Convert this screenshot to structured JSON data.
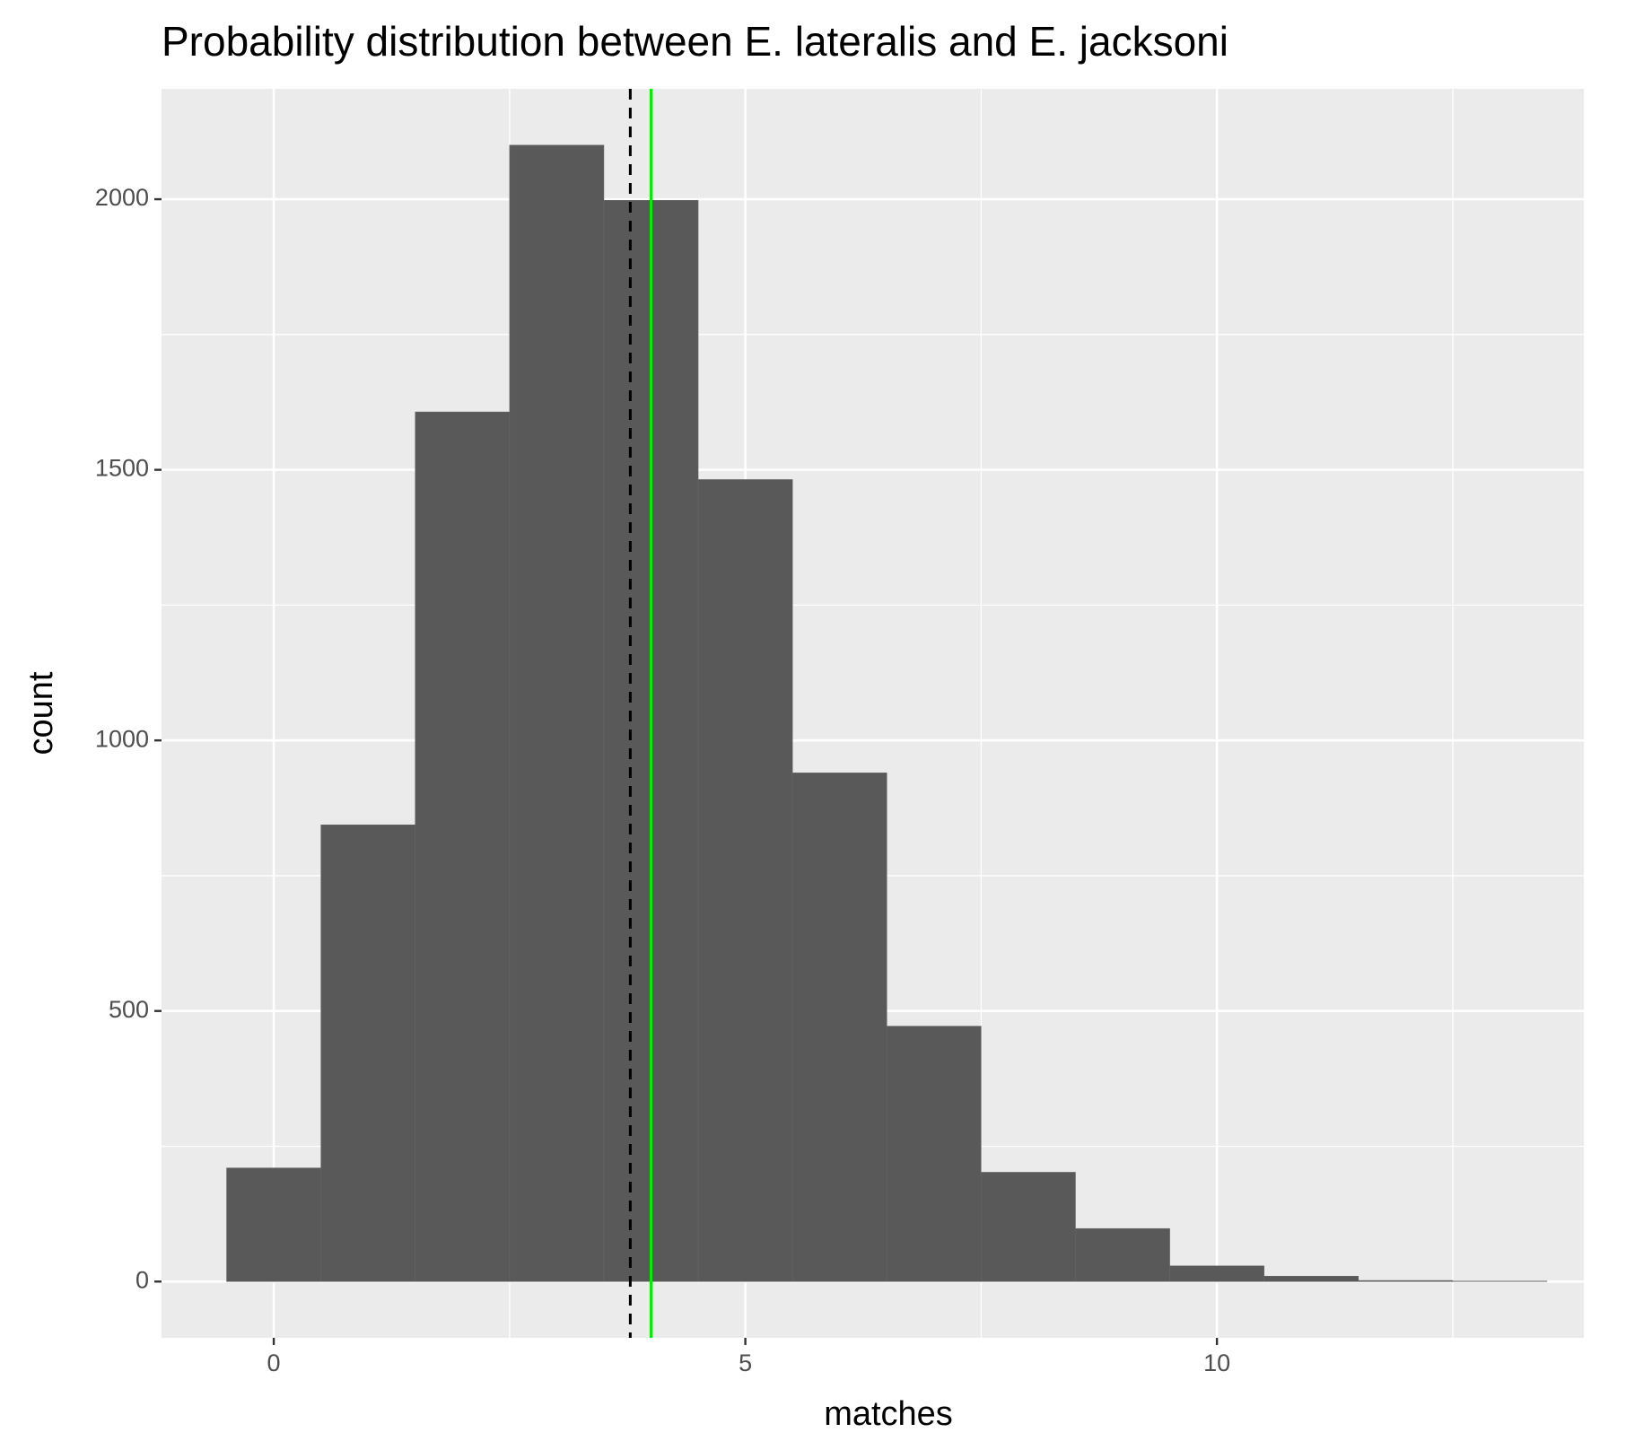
{
  "chart_data": {
    "type": "histogram",
    "title": "Probability distribution between E. lateralis and E. jacksoni",
    "x_label": "matches",
    "y_label": "count",
    "bins": [
      -0.5,
      0.5,
      1.5,
      2.5,
      3.5,
      4.5,
      5.5,
      6.5,
      7.5,
      8.5,
      9.5,
      10.5,
      11.5,
      12.5,
      13.5
    ],
    "counts": [
      210,
      844,
      1607,
      2100,
      1998,
      1482,
      940,
      472,
      202,
      98,
      29,
      10,
      2,
      1
    ],
    "color": "#595959",
    "xlim": [
      -1.19,
      13.89
    ],
    "ylim": [
      -104,
      2204
    ],
    "xticks": [
      0,
      5,
      10
    ],
    "yticks": [
      0,
      500,
      1000,
      1500,
      2000
    ],
    "minor_xticks": [
      2.5,
      7.5,
      12.5
    ],
    "minor_yticks": [
      250,
      750,
      1250,
      1750
    ],
    "grid": true,
    "vlines": [
      {
        "x": 3.78,
        "color": "#000000",
        "dashed": true
      },
      {
        "x": 4.0,
        "color": "#00ee00",
        "dashed": false
      }
    ]
  }
}
